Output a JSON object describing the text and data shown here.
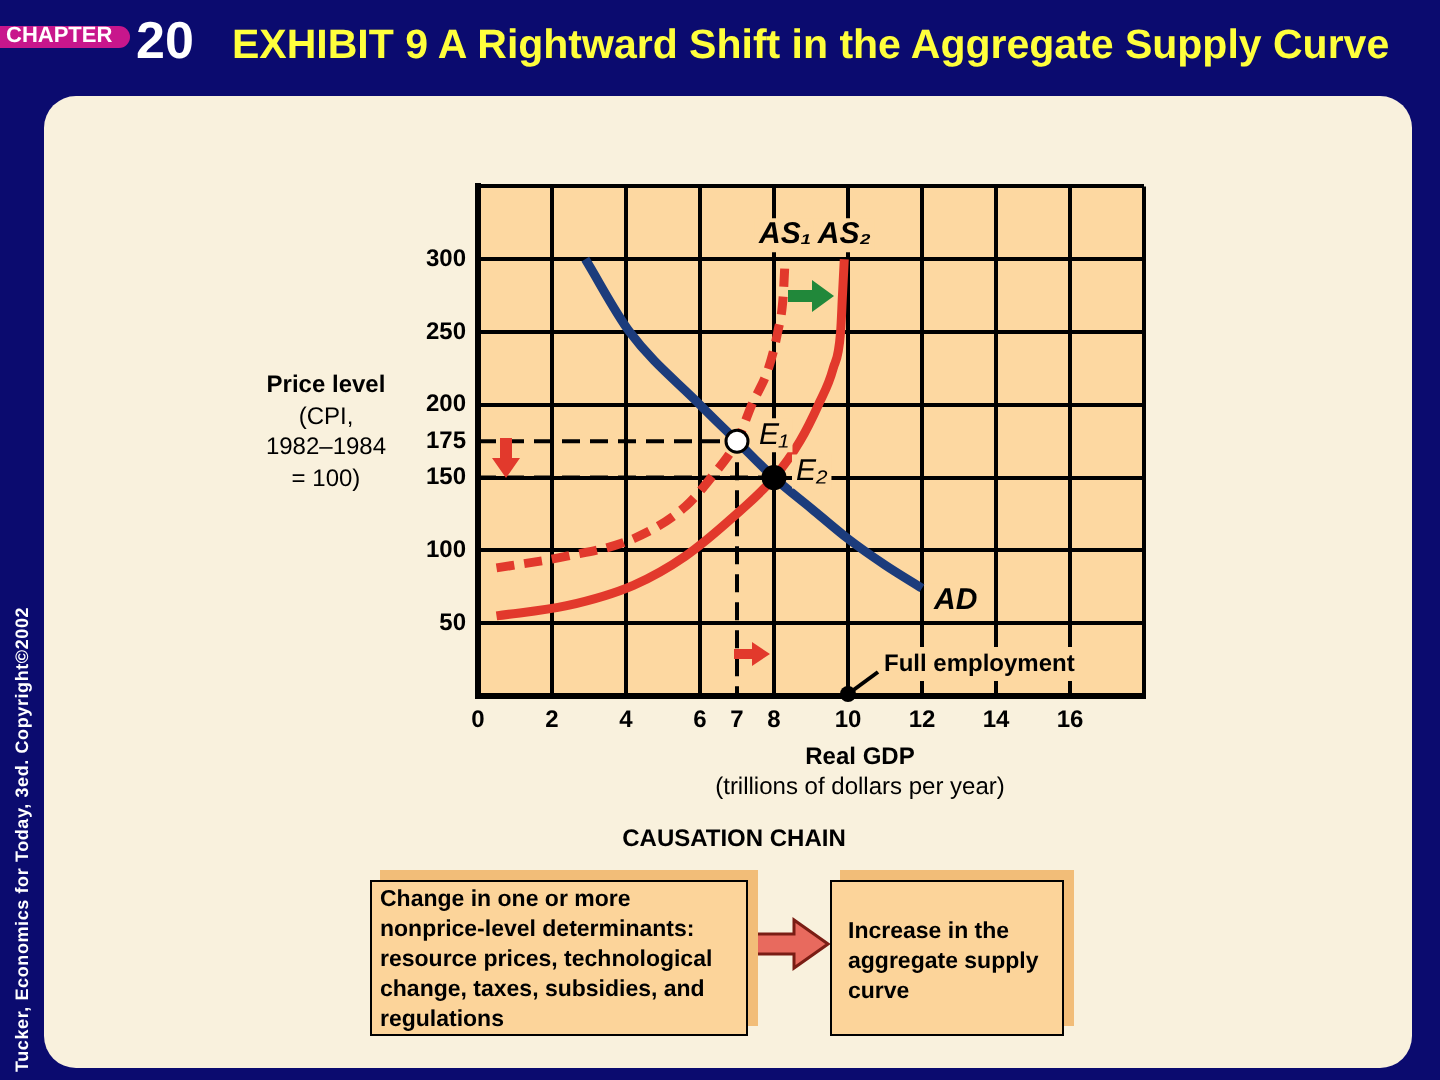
{
  "chart_data": {
    "type": "line",
    "title": "EXHIBIT 9 A Rightward Shift in the Aggregate Supply Curve",
    "xlabel": "Real GDP (trillions of dollars per year)",
    "ylabel": "Price level (CPI, 1982–1984 = 100)",
    "xlim": [
      0,
      18
    ],
    "ylim": [
      0,
      350
    ],
    "xticks": [
      0,
      2,
      4,
      6,
      7,
      8,
      10,
      12,
      14,
      16,
      {
        "value": 18,
        "label": null
      }
    ],
    "yticks": [
      50,
      100,
      150,
      175,
      200,
      250,
      300,
      {
        "value": 350,
        "label": null
      }
    ],
    "grid": true,
    "marker": "none",
    "series": [
      {
        "type": "line",
        "color": "#000000",
        "line_style": "dashed",
        "x": [
          0,
          7,
          7
        ],
        "values": [
          175,
          175,
          0
        ]
      },
      {
        "type": "line",
        "color": "#000000",
        "line_style": "dashed",
        "x": [
          0,
          8
        ],
        "values": [
          150,
          150
        ]
      },
      {
        "name": "AS₁",
        "color": "#e2392c",
        "line_style": "dashed",
        "x": [
          0.5,
          2.4,
          4.2,
          5.6,
          6.3,
          7,
          7.4,
          7.85,
          8.1,
          8.25,
          8.3
        ],
        "values": [
          88,
          96,
          108,
          130,
          150,
          175,
          200,
          225,
          250,
          275,
          300
        ]
      },
      {
        "name": "AS₂",
        "color": "#e2392c",
        "x": [
          0.5,
          2.4,
          4.2,
          5.6,
          6.9,
          8,
          8.7,
          9.2,
          9.6,
          9.8,
          9.85,
          9.9
        ],
        "values": [
          55,
          62,
          76,
          96,
          123,
          150,
          175,
          200,
          225,
          250,
          275,
          300
        ]
      },
      {
        "name": "AD",
        "color": "#1c3c7c",
        "x": [
          2.9,
          4.1,
          6,
          7,
          8,
          9,
          10,
          11,
          12
        ],
        "values": [
          300,
          250,
          200,
          175,
          150,
          129,
          108,
          90,
          74
        ]
      },
      {
        "type": "scatter",
        "color": "#ffffff",
        "marker": "circle",
        "x": [
          7
        ],
        "values": [
          175
        ]
      },
      {
        "type": "scatter",
        "color": "#000000",
        "marker": "circle",
        "x": [
          8
        ],
        "values": [
          150
        ]
      }
    ],
    "annotations": [
      "CHAPTER",
      "20",
      {
        "text": "E₁",
        "x": 7,
        "y": 175
      },
      {
        "text": "E₂",
        "x": 8,
        "y": 150
      },
      {
        "text": "Full employment",
        "x": 10,
        "y": 0
      },
      "CAUSATION CHAIN",
      "Change in one or more nonprice-level determinants: resource prices, technological change, taxes, subsidies, and regulations",
      "Increase in the aggregate supply curve",
      "Tucker, Economics for Today, 3ed. Copyright©2002"
    ]
  }
}
